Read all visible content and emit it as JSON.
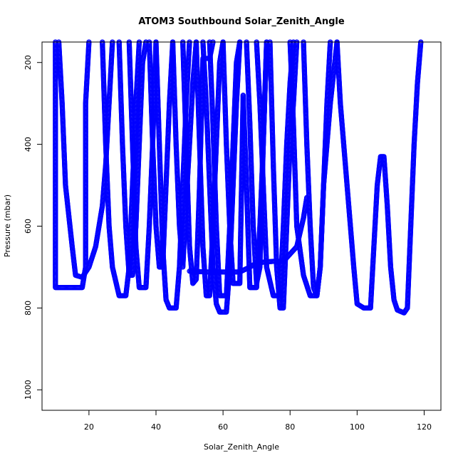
{
  "chart_data": {
    "type": "scatter",
    "title": "ATOM3 Southbound Solar_Zenith_Angle",
    "xlabel": "Solar_Zenith_Angle",
    "ylabel": "Pressure (mbar)",
    "xlim": [
      6,
      125
    ],
    "ylim": [
      1050,
      150
    ],
    "y_inverted": true,
    "xticks": [
      20,
      40,
      60,
      80,
      100,
      120
    ],
    "yticks": [
      200,
      400,
      600,
      800,
      1000
    ],
    "marker": "open-circle",
    "color": "#0000ff",
    "grid": false,
    "series": [
      {
        "values": [
          [
            10,
            150
          ],
          [
            10,
            300
          ],
          [
            10,
            500
          ],
          [
            10,
            700
          ],
          [
            10,
            750
          ],
          [
            14,
            750
          ],
          [
            18,
            750
          ],
          [
            19,
            700
          ],
          [
            19,
            500
          ],
          [
            19,
            300
          ],
          [
            20,
            150
          ]
        ]
      },
      {
        "values": [
          [
            11,
            150
          ],
          [
            12,
            300
          ],
          [
            13,
            500
          ],
          [
            15,
            650
          ],
          [
            16,
            720
          ],
          [
            18,
            725
          ],
          [
            20,
            700
          ],
          [
            22,
            650
          ],
          [
            24,
            550
          ],
          [
            25,
            450
          ],
          [
            26,
            300
          ],
          [
            27,
            150
          ]
        ]
      },
      {
        "values": [
          [
            24,
            150
          ],
          [
            25,
            400
          ],
          [
            26,
            600
          ],
          [
            27,
            700
          ],
          [
            29,
            770
          ],
          [
            31,
            770
          ],
          [
            32,
            700
          ],
          [
            33,
            500
          ],
          [
            34,
            300
          ],
          [
            35,
            150
          ]
        ]
      },
      {
        "values": [
          [
            29,
            150
          ],
          [
            30,
            400
          ],
          [
            31,
            600
          ],
          [
            32,
            720
          ],
          [
            33,
            720
          ],
          [
            34,
            600
          ],
          [
            35,
            400
          ],
          [
            36,
            200
          ],
          [
            37,
            150
          ]
        ]
      },
      {
        "values": [
          [
            32,
            150
          ],
          [
            33,
            400
          ],
          [
            34,
            650
          ],
          [
            35,
            750
          ],
          [
            37,
            750
          ],
          [
            38,
            600
          ],
          [
            39,
            400
          ],
          [
            40,
            150
          ]
        ]
      },
      {
        "values": [
          [
            38,
            150
          ],
          [
            39,
            400
          ],
          [
            40,
            600
          ],
          [
            41,
            700
          ],
          [
            42,
            700
          ],
          [
            43,
            500
          ],
          [
            44,
            300
          ],
          [
            45,
            150
          ]
        ]
      },
      {
        "values": [
          [
            40,
            150
          ],
          [
            41,
            400
          ],
          [
            42,
            650
          ],
          [
            43,
            780
          ],
          [
            44,
            800
          ],
          [
            46,
            800
          ],
          [
            47,
            700
          ],
          [
            48,
            500
          ],
          [
            49,
            300
          ],
          [
            50,
            150
          ]
        ]
      },
      {
        "values": [
          [
            45,
            150
          ],
          [
            46,
            400
          ],
          [
            47,
            600
          ],
          [
            48,
            700
          ],
          [
            49,
            540
          ],
          [
            50,
            400
          ],
          [
            51,
            250
          ],
          [
            52,
            150
          ]
        ]
      },
      {
        "values": [
          [
            48,
            150
          ],
          [
            49,
            400
          ],
          [
            50,
            650
          ],
          [
            51,
            740
          ],
          [
            52,
            730
          ],
          [
            53,
            500
          ],
          [
            54,
            190
          ],
          [
            56,
            190
          ],
          [
            57,
            150
          ]
        ]
      },
      {
        "values": [
          [
            52,
            150
          ],
          [
            53,
            400
          ],
          [
            54,
            650
          ],
          [
            55,
            770
          ],
          [
            56,
            770
          ],
          [
            57,
            600
          ],
          [
            58,
            400
          ],
          [
            59,
            200
          ],
          [
            60,
            150
          ]
        ]
      },
      {
        "values": [
          [
            54,
            150
          ],
          [
            55,
            300
          ],
          [
            56,
            500
          ],
          [
            57,
            700
          ],
          [
            58,
            790
          ],
          [
            59,
            810
          ],
          [
            61,
            810
          ],
          [
            62,
            700
          ],
          [
            63,
            500
          ],
          [
            64,
            300
          ],
          [
            65,
            150
          ]
        ]
      },
      {
        "values": [
          [
            56,
            150
          ],
          [
            57,
            350
          ],
          [
            58,
            600
          ],
          [
            59,
            770
          ],
          [
            61,
            770
          ],
          [
            62,
            600
          ],
          [
            63,
            400
          ],
          [
            64,
            200
          ],
          [
            65,
            150
          ]
        ]
      },
      {
        "values": [
          [
            60,
            150
          ],
          [
            61,
            400
          ],
          [
            62,
            600
          ],
          [
            63,
            740
          ],
          [
            65,
            740
          ],
          [
            66,
            280
          ],
          [
            67,
            500
          ],
          [
            68,
            750
          ],
          [
            70,
            750
          ],
          [
            71,
            600
          ],
          [
            72,
            400
          ],
          [
            73,
            150
          ]
        ]
      },
      {
        "values": [
          [
            50,
            710
          ],
          [
            55,
            712
          ],
          [
            60,
            712
          ],
          [
            65,
            712
          ],
          [
            68,
            700
          ],
          [
            70,
            690
          ],
          [
            72,
            688
          ],
          [
            75,
            686
          ],
          [
            78,
            686
          ],
          [
            82,
            650
          ],
          [
            84,
            580
          ],
          [
            85,
            530
          ]
        ]
      },
      {
        "values": [
          [
            67,
            150
          ],
          [
            68,
            350
          ],
          [
            69,
            600
          ],
          [
            70,
            740
          ],
          [
            71,
            700
          ],
          [
            72,
            400
          ],
          [
            73,
            150
          ]
        ]
      },
      {
        "values": [
          [
            70,
            150
          ],
          [
            71,
            300
          ],
          [
            72,
            500
          ],
          [
            73,
            700
          ],
          [
            75,
            770
          ],
          [
            77,
            770
          ],
          [
            78,
            600
          ],
          [
            79,
            400
          ],
          [
            80,
            250
          ],
          [
            81,
            150
          ]
        ]
      },
      {
        "values": [
          [
            74,
            150
          ],
          [
            75,
            450
          ],
          [
            76,
            700
          ],
          [
            77,
            800
          ],
          [
            78,
            800
          ],
          [
            79,
            600
          ],
          [
            80,
            400
          ],
          [
            81,
            300
          ],
          [
            82,
            150
          ]
        ]
      },
      {
        "values": [
          [
            80,
            150
          ],
          [
            81,
            350
          ],
          [
            82,
            600
          ],
          [
            84,
            720
          ],
          [
            86,
            770
          ],
          [
            88,
            770
          ],
          [
            89,
            700
          ],
          [
            90,
            500
          ],
          [
            91,
            300
          ],
          [
            92,
            150
          ]
        ]
      },
      {
        "values": [
          [
            84,
            150
          ],
          [
            85,
            400
          ],
          [
            86,
            600
          ],
          [
            87,
            750
          ],
          [
            88,
            770
          ],
          [
            89,
            700
          ],
          [
            90,
            500
          ],
          [
            92,
            300
          ],
          [
            94,
            150
          ]
        ]
      },
      {
        "values": [
          [
            94,
            150
          ],
          [
            95,
            300
          ],
          [
            97,
            500
          ],
          [
            99,
            700
          ],
          [
            100,
            790
          ],
          [
            102,
            800
          ],
          [
            104,
            800
          ],
          [
            105,
            650
          ],
          [
            106,
            500
          ],
          [
            107,
            430
          ],
          [
            108,
            430
          ],
          [
            109,
            550
          ],
          [
            110,
            700
          ],
          [
            111,
            780
          ],
          [
            112,
            805
          ],
          [
            114,
            812
          ],
          [
            115,
            800
          ],
          [
            116,
            600
          ],
          [
            117,
            400
          ],
          [
            118,
            250
          ],
          [
            119,
            150
          ]
        ]
      }
    ]
  }
}
